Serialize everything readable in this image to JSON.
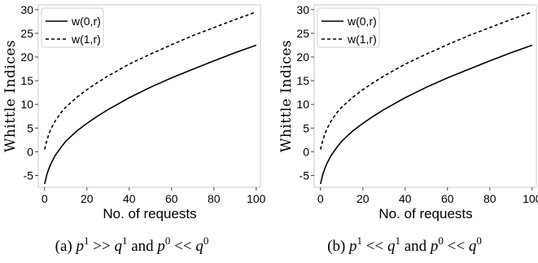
{
  "chart_data": [
    {
      "type": "line",
      "caption": "(a) p1 >> q1 and p0 << q0",
      "caption_parts": {
        "label": "(a)",
        "a": "p",
        "a_sup": "1",
        "rel1": ">>",
        "b": "q",
        "b_sup": "1",
        "and": "and",
        "c": "p",
        "c_sup": "0",
        "rel2": "<<",
        "d": "q",
        "d_sup": "0"
      },
      "xlabel": "No. of requests",
      "ylabel": "Whittle Indices",
      "xlim": [
        -3,
        102
      ],
      "ylim": [
        -7.5,
        31
      ],
      "xticks": [
        0,
        20,
        40,
        60,
        80,
        100
      ],
      "yticks": [
        -5,
        0,
        5,
        10,
        15,
        20,
        25,
        30
      ],
      "grid": false,
      "legend_position": "top-left",
      "series": [
        {
          "name": "w(0,r)",
          "style": "solid",
          "x": [
            0,
            1,
            2,
            3,
            5,
            8,
            10,
            15,
            20,
            25,
            30,
            40,
            50,
            60,
            70,
            80,
            90,
            100
          ],
          "y": [
            -6.8,
            -4.9,
            -3.6,
            -2.5,
            -0.8,
            1.1,
            2.2,
            4.3,
            6.0,
            7.5,
            8.9,
            11.4,
            13.6,
            15.6,
            17.4,
            19.2,
            20.9,
            22.5
          ]
        },
        {
          "name": "w(1,r)",
          "style": "dashed",
          "x": [
            0,
            1,
            2,
            3,
            5,
            8,
            10,
            15,
            20,
            25,
            30,
            40,
            50,
            60,
            70,
            80,
            90,
            100
          ],
          "y": [
            0.5,
            2.3,
            3.7,
            4.8,
            6.5,
            8.4,
            9.4,
            11.4,
            13.1,
            14.6,
            16.0,
            18.5,
            20.6,
            22.6,
            24.5,
            26.2,
            27.9,
            29.5
          ]
        }
      ]
    },
    {
      "type": "line",
      "caption": "(b) p1 << q1 and p0 << q0",
      "caption_parts": {
        "label": "(b)",
        "a": "p",
        "a_sup": "1",
        "rel1": "<<",
        "b": "q",
        "b_sup": "1",
        "and": "and",
        "c": "p",
        "c_sup": "0",
        "rel2": "<<",
        "d": "q",
        "d_sup": "0"
      },
      "xlabel": "No. of requests",
      "ylabel": "Whittle Indices",
      "xlim": [
        -3,
        102
      ],
      "ylim": [
        -7.5,
        31
      ],
      "xticks": [
        0,
        20,
        40,
        60,
        80,
        100
      ],
      "yticks": [
        -5,
        0,
        5,
        10,
        15,
        20,
        25,
        30
      ],
      "grid": false,
      "legend_position": "top-left",
      "series": [
        {
          "name": "w(0,r)",
          "style": "solid",
          "x": [
            0,
            1,
            2,
            3,
            5,
            8,
            10,
            15,
            20,
            25,
            30,
            40,
            50,
            60,
            70,
            80,
            90,
            100
          ],
          "y": [
            -6.8,
            -4.9,
            -3.6,
            -2.5,
            -0.8,
            1.1,
            2.2,
            4.3,
            6.0,
            7.5,
            8.9,
            11.4,
            13.6,
            15.6,
            17.4,
            19.2,
            20.9,
            22.5
          ]
        },
        {
          "name": "w(1,r)",
          "style": "dashed",
          "x": [
            0,
            1,
            2,
            3,
            5,
            8,
            10,
            15,
            20,
            25,
            30,
            40,
            50,
            60,
            70,
            80,
            90,
            100
          ],
          "y": [
            0.5,
            2.3,
            3.7,
            4.8,
            6.5,
            8.4,
            9.4,
            11.4,
            13.1,
            14.6,
            16.0,
            18.5,
            20.6,
            22.6,
            24.5,
            26.2,
            27.9,
            29.5
          ]
        }
      ]
    }
  ]
}
